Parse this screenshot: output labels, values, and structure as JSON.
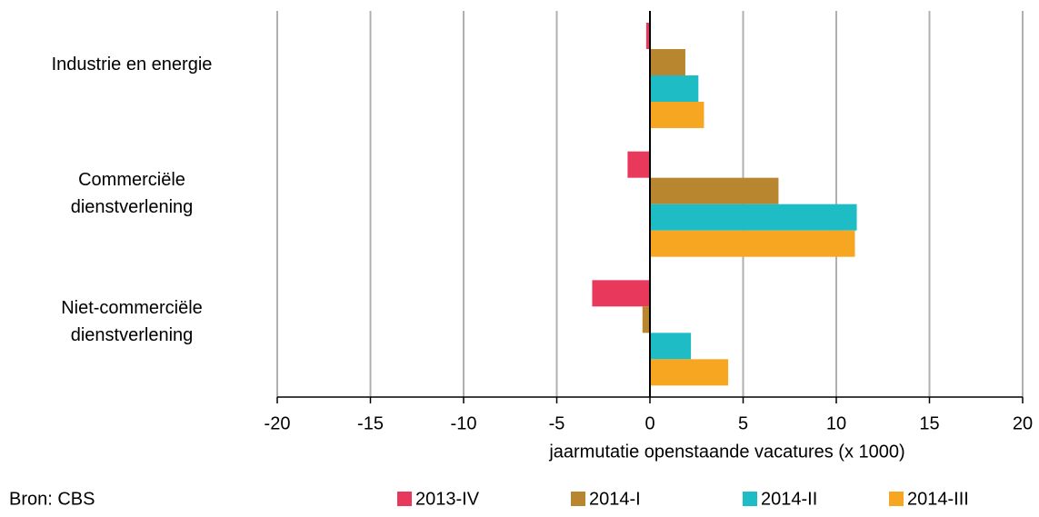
{
  "chart_data": {
    "type": "hbar",
    "xlabel": "jaarmutatie openstaande vacatures (x 1000)",
    "source": "Bron: CBS",
    "categories": [
      "Industrie en energie",
      "Commerciële\ndienstverlening",
      "Niet-commerciële\ndienstverlening"
    ],
    "series": [
      {
        "name": "2013-IV",
        "color": "#e8385c",
        "values": [
          -0.2,
          -1.2,
          -3.1
        ]
      },
      {
        "name": "2014-I",
        "color": "#b98630",
        "values": [
          1.9,
          6.9,
          -0.4
        ]
      },
      {
        "name": "2014-II",
        "color": "#1ebcc5",
        "values": [
          2.6,
          11.1,
          2.2
        ]
      },
      {
        "name": "2014-III",
        "color": "#f6a621",
        "values": [
          2.9,
          11.0,
          4.2
        ]
      }
    ],
    "xlim": [
      -20,
      20
    ],
    "xticks": [
      -20,
      -15,
      -10,
      -5,
      0,
      5,
      10,
      15,
      20
    ],
    "grid": true
  }
}
